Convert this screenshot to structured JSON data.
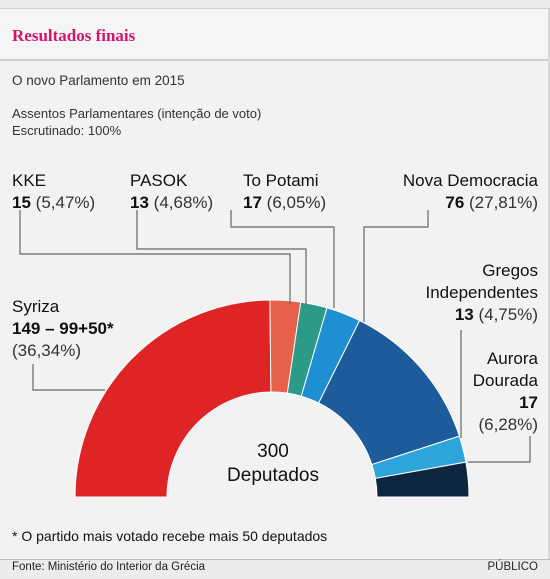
{
  "title": "Resultados finais",
  "subtitle": "O novo Parlamento em 2015",
  "description": "Assentos Parlamentares (intenção de voto)",
  "counted": "Escrutinado: 100%",
  "footnote": "* O partido mais votado recebe mais 50 deputados",
  "source": "Fonte: Ministério do Interior da Grécia",
  "brand": "PÚBLICO",
  "center": {
    "total": "300",
    "unit": "Deputados"
  },
  "chart_data": {
    "type": "pie",
    "variant": "half-donut",
    "total_seats": 300,
    "parties": [
      {
        "name": "Syriza",
        "seats": 149,
        "seats_label": "149 – 99+50*",
        "vote_pct": "(36,34%)",
        "color": "#df2426"
      },
      {
        "name": "KKE",
        "seats": 15,
        "seats_label": "15",
        "vote_pct": "(5,47%)",
        "color": "#e7604a"
      },
      {
        "name": "PASOK",
        "seats": 13,
        "seats_label": "13",
        "vote_pct": "(4,68%)",
        "color": "#2b9a86"
      },
      {
        "name": "To Potami",
        "seats": 17,
        "seats_label": "17",
        "vote_pct": "(6,05%)",
        "color": "#1f8fd3"
      },
      {
        "name": "Nova Democracia",
        "seats": 76,
        "seats_label": "76",
        "vote_pct": "(27,81%)",
        "color": "#1d5b9a"
      },
      {
        "name": "Gregos Independentes",
        "seats": 13,
        "seats_label": "13",
        "vote_pct": "(4,75%)",
        "color": "#2da5da"
      },
      {
        "name": "Aurora Dourada",
        "seats": 17,
        "seats_label": "17",
        "vote_pct": "(6,28%)",
        "color": "#0f2640"
      }
    ]
  }
}
